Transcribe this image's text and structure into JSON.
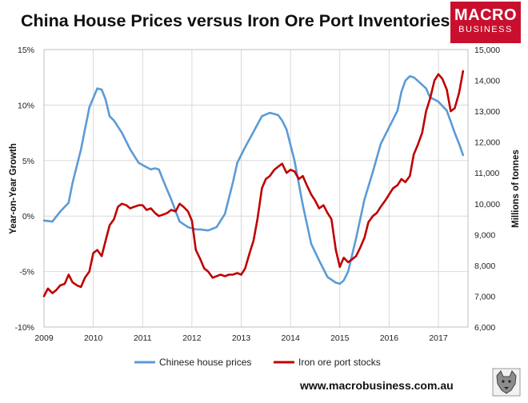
{
  "title": "China House Prices versus Iron Ore Port Inventories",
  "logo": {
    "line1": "MACRO",
    "line2": "BUSINESS"
  },
  "footer": "www.macrobusiness.com.au",
  "colors": {
    "house": "#5b9bd5",
    "ore": "#c00000",
    "grid": "#d9d9d9"
  },
  "icons": {
    "wolf": "wolf-icon"
  },
  "chart_data": {
    "type": "line",
    "xlim": [
      2009,
      2017.6
    ],
    "x_ticks": [
      "2009",
      "2010",
      "2011",
      "2012",
      "2013",
      "2014",
      "2015",
      "2016",
      "2017"
    ],
    "y_left": {
      "label": "Year-on-Year Growth",
      "lim": [
        -10,
        15
      ],
      "ticks": [
        "-10%",
        "-5%",
        "0%",
        "5%",
        "10%",
        "15%"
      ]
    },
    "y_right": {
      "label": "Millions of tonnes",
      "lim": [
        6000,
        15000
      ],
      "ticks": [
        "6,000",
        "7,000",
        "8,000",
        "9,000",
        "10,000",
        "11,000",
        "12,000",
        "13,000",
        "14,000",
        "15,000"
      ]
    },
    "grid": true,
    "legend_position": "bottom",
    "series": [
      {
        "name": "Chinese house prices",
        "axis": "left",
        "x": [
          2009.0,
          2009.17,
          2009.33,
          2009.5,
          2009.58,
          2009.75,
          2009.92,
          2010.08,
          2010.17,
          2010.25,
          2010.33,
          2010.42,
          2010.58,
          2010.75,
          2010.92,
          2011.08,
          2011.17,
          2011.25,
          2011.33,
          2011.42,
          2011.58,
          2011.75,
          2011.92,
          2012.08,
          2012.17,
          2012.33,
          2012.5,
          2012.67,
          2012.83,
          2012.92,
          2013.08,
          2013.25,
          2013.42,
          2013.58,
          2013.67,
          2013.75,
          2013.83,
          2013.92,
          2014.08,
          2014.25,
          2014.42,
          2014.58,
          2014.75,
          2014.92,
          2015.0,
          2015.08,
          2015.17,
          2015.33,
          2015.5,
          2015.67,
          2015.83,
          2016.0,
          2016.17,
          2016.25,
          2016.33,
          2016.42,
          2016.5,
          2016.58,
          2016.75,
          2016.83,
          2016.92,
          2017.0,
          2017.17,
          2017.33,
          2017.42,
          2017.5
        ],
        "values": [
          -0.4,
          -0.5,
          0.4,
          1.2,
          3.0,
          6.0,
          9.8,
          11.5,
          11.4,
          10.5,
          9.0,
          8.6,
          7.5,
          6.0,
          4.8,
          4.4,
          4.2,
          4.3,
          4.2,
          3.2,
          1.5,
          -0.5,
          -1.0,
          -1.2,
          -1.2,
          -1.3,
          -1.0,
          0.2,
          3.0,
          4.8,
          6.2,
          7.6,
          9.0,
          9.3,
          9.2,
          9.1,
          8.6,
          7.8,
          5.0,
          1.0,
          -2.5,
          -4.0,
          -5.5,
          -6.0,
          -6.1,
          -5.8,
          -5.0,
          -2.0,
          1.5,
          4.0,
          6.5,
          8.0,
          9.5,
          11.2,
          12.2,
          12.6,
          12.5,
          12.2,
          11.5,
          10.7,
          10.5,
          10.3,
          9.5,
          7.5,
          6.5,
          5.5
        ]
      },
      {
        "name": "Iron ore port stocks",
        "axis": "right",
        "x": [
          2009.0,
          2009.08,
          2009.17,
          2009.25,
          2009.33,
          2009.42,
          2009.5,
          2009.58,
          2009.67,
          2009.75,
          2009.83,
          2009.92,
          2010.0,
          2010.08,
          2010.17,
          2010.25,
          2010.33,
          2010.42,
          2010.5,
          2010.58,
          2010.67,
          2010.75,
          2010.83,
          2010.92,
          2011.0,
          2011.08,
          2011.17,
          2011.25,
          2011.33,
          2011.42,
          2011.5,
          2011.58,
          2011.67,
          2011.75,
          2011.83,
          2011.92,
          2012.0,
          2012.08,
          2012.17,
          2012.25,
          2012.33,
          2012.42,
          2012.5,
          2012.58,
          2012.67,
          2012.75,
          2012.83,
          2012.92,
          2013.0,
          2013.08,
          2013.17,
          2013.25,
          2013.33,
          2013.42,
          2013.5,
          2013.58,
          2013.67,
          2013.75,
          2013.83,
          2013.92,
          2014.0,
          2014.08,
          2014.17,
          2014.25,
          2014.33,
          2014.42,
          2014.5,
          2014.58,
          2014.67,
          2014.75,
          2014.83,
          2014.92,
          2015.0,
          2015.08,
          2015.17,
          2015.25,
          2015.33,
          2015.42,
          2015.5,
          2015.58,
          2015.67,
          2015.75,
          2015.83,
          2015.92,
          2016.0,
          2016.08,
          2016.17,
          2016.25,
          2016.33,
          2016.42,
          2016.5,
          2016.58,
          2016.67,
          2016.75,
          2016.83,
          2016.92,
          2017.0,
          2017.08,
          2017.17,
          2017.25,
          2017.33,
          2017.42,
          2017.5
        ],
        "values": [
          7000,
          7250,
          7100,
          7200,
          7350,
          7400,
          7700,
          7450,
          7350,
          7300,
          7600,
          7800,
          8400,
          8500,
          8300,
          8800,
          9300,
          9500,
          9900,
          10000,
          9950,
          9850,
          9900,
          9950,
          9950,
          9800,
          9850,
          9700,
          9600,
          9650,
          9700,
          9800,
          9750,
          10000,
          9900,
          9750,
          9450,
          8500,
          8200,
          7900,
          7800,
          7600,
          7650,
          7700,
          7650,
          7700,
          7700,
          7750,
          7700,
          7900,
          8400,
          8800,
          9500,
          10500,
          10800,
          10900,
          11100,
          11200,
          11300,
          11000,
          11100,
          11050,
          10800,
          10900,
          10600,
          10300,
          10100,
          9850,
          9950,
          9700,
          9500,
          8500,
          7950,
          8250,
          8100,
          8200,
          8300,
          8600,
          8900,
          9400,
          9600,
          9700,
          9900,
          10100,
          10300,
          10500,
          10600,
          10800,
          10700,
          10900,
          11600,
          11900,
          12300,
          13000,
          13400,
          14000,
          14200,
          14050,
          13700,
          13000,
          13100,
          13600,
          14300
        ]
      }
    ]
  }
}
